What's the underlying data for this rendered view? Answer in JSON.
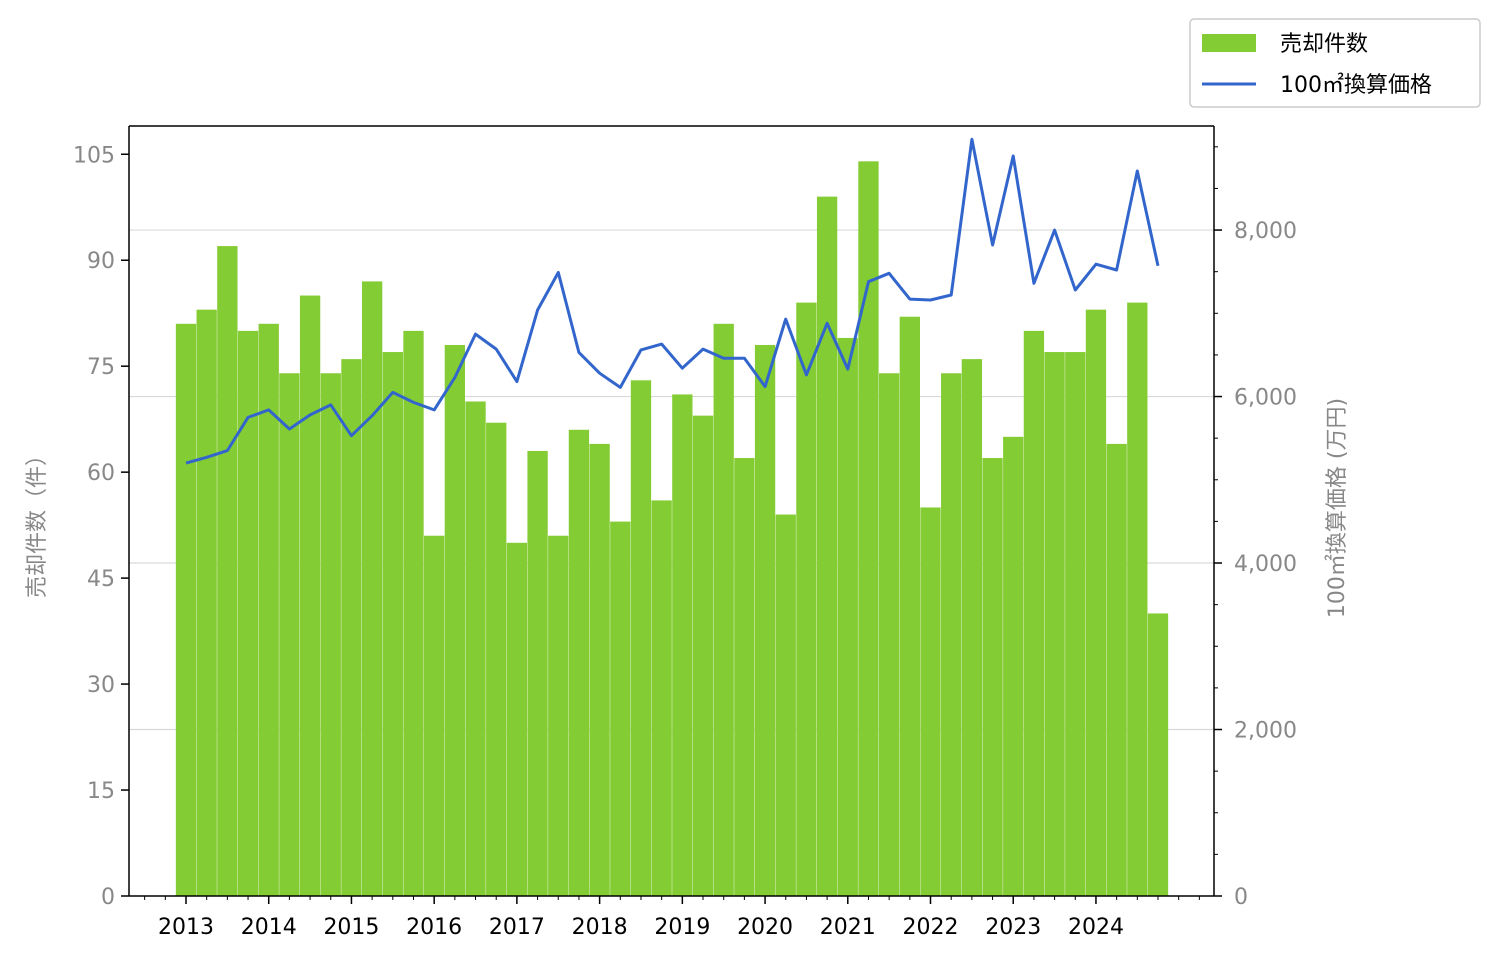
{
  "colors": {
    "bar": "#84cc33",
    "line": "#3366cc",
    "grid": "#d9d9d9",
    "axis": "#000000",
    "muted_text": "#888888",
    "x_tick_text": "#000000"
  },
  "legend": {
    "placement": "top-right",
    "items": [
      {
        "label": "売却件数",
        "kind": "bar"
      },
      {
        "label": "100㎡換算価格",
        "kind": "line"
      }
    ]
  },
  "chart_data": {
    "type": "bar",
    "title": "",
    "xlabel": "",
    "ylabel": "売却件数（件）",
    "y2label": "100㎡換算価格 (万円)",
    "ylim": [
      0,
      109
    ],
    "y2lim": [
      0,
      9250
    ],
    "grid": "horizontal, right axis",
    "x_tick_labels": [
      "2013",
      "2014",
      "2015",
      "2016",
      "2017",
      "2018",
      "2019",
      "2020",
      "2021",
      "2022",
      "2023",
      "2024"
    ],
    "left_ticks": [
      "0",
      "15",
      "30",
      "45",
      "60",
      "75",
      "90",
      "105"
    ],
    "left_tick_values": [
      0,
      15,
      30,
      45,
      60,
      75,
      90,
      105
    ],
    "right_ticks": [
      "0",
      "2,000",
      "4,000",
      "6,000",
      "8,000"
    ],
    "right_tick_values": [
      0,
      2000,
      4000,
      6000,
      8000
    ],
    "categories": [
      "2013Q1",
      "2013Q2",
      "2013Q3",
      "2013Q4",
      "2014Q1",
      "2014Q2",
      "2014Q3",
      "2014Q4",
      "2015Q1",
      "2015Q2",
      "2015Q3",
      "2015Q4",
      "2016Q1",
      "2016Q2",
      "2016Q3",
      "2016Q4",
      "2017Q1",
      "2017Q2",
      "2017Q3",
      "2017Q4",
      "2018Q1",
      "2018Q2",
      "2018Q3",
      "2018Q4",
      "2019Q1",
      "2019Q2",
      "2019Q3",
      "2019Q4",
      "2020Q1",
      "2020Q2",
      "2020Q3",
      "2020Q4",
      "2021Q1",
      "2021Q2",
      "2021Q3",
      "2021Q4",
      "2022Q1",
      "2022Q2",
      "2022Q3",
      "2022Q4",
      "2023Q1",
      "2023Q2",
      "2023Q3",
      "2023Q4",
      "2024Q1",
      "2024Q2",
      "2024Q3",
      "2024Q4"
    ],
    "series": [
      {
        "name": "売却件数",
        "type": "bar",
        "axis": "left",
        "values": [
          81,
          83,
          92,
          80,
          81,
          74,
          85,
          74,
          76,
          87,
          77,
          80,
          51,
          78,
          70,
          67,
          50,
          63,
          51,
          66,
          64,
          53,
          73,
          56,
          71,
          68,
          81,
          62,
          78,
          54,
          84,
          99,
          79,
          104,
          74,
          82,
          55,
          74,
          76,
          62,
          65,
          80,
          77,
          77,
          83,
          64,
          84,
          40
        ]
      },
      {
        "name": "100㎡換算価格",
        "type": "line",
        "axis": "right",
        "values": [
          5200,
          5270,
          5350,
          5750,
          5840,
          5610,
          5780,
          5900,
          5530,
          5770,
          6050,
          5930,
          5840,
          6230,
          6750,
          6570,
          6180,
          7040,
          7490,
          6530,
          6280,
          6110,
          6560,
          6630,
          6340,
          6570,
          6460,
          6460,
          6120,
          6930,
          6260,
          6880,
          6330,
          7380,
          7480,
          7170,
          7160,
          7220,
          9090,
          7820,
          8890,
          7360,
          8000,
          7280,
          7590,
          7520,
          8710,
          7570
        ]
      }
    ]
  }
}
